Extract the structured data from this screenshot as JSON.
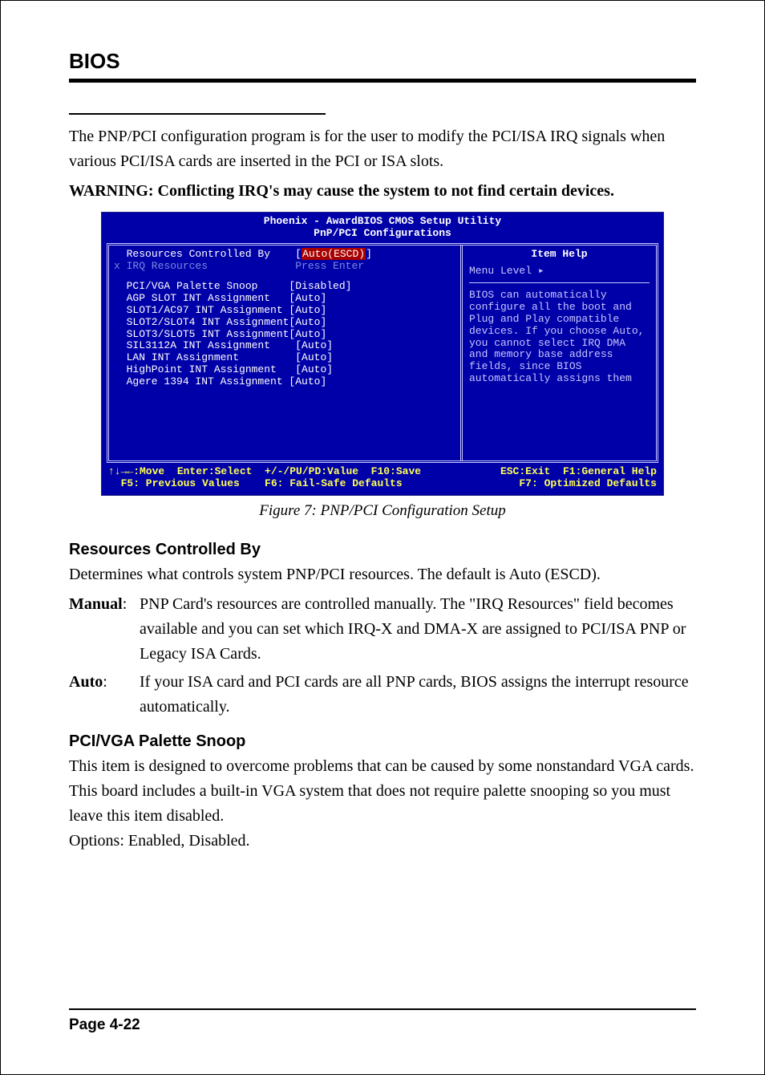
{
  "header": "BIOS",
  "intro_p1": "The PNP/PCI configuration program is for the user to modify the PCI/ISA IRQ signals when various PCI/ISA cards are inserted in the PCI or ISA slots.",
  "warning": "WARNING: Conflicting IRQ's may cause the system to not find certain devices.",
  "figure_caption": "Figure 7:  PNP/PCI Configuration Setup",
  "section1": {
    "title": "Resources Controlled By",
    "body": "Determines what controls system PNP/PCI resources. The default is Auto (ESCD).",
    "defs": [
      {
        "term": "Manual",
        "body": "PNP Card's resources are controlled manually. The \"IRQ Resources\" field becomes available and you can set which IRQ-X and DMA-X are assigned to PCI/ISA PNP or Legacy ISA Cards."
      },
      {
        "term": "Auto",
        "body": "If your ISA card and PCI cards are all PNP cards, BIOS assigns the interrupt resource automatically."
      }
    ]
  },
  "section2": {
    "title": "PCI/VGA Palette Snoop",
    "body": "This item is designed to overcome problems that can be caused by some nonstandard VGA cards. This board includes a built-in VGA system that does not require palette snooping so you must leave this item disabled.",
    "options": "Options: Enabled, Disabled."
  },
  "page_number": "Page 4-22",
  "bios": {
    "title1": "Phoenix - AwardBIOS CMOS Setup Utility",
    "title2": "PnP/PCI Configurations",
    "left": {
      "row0_label": "Resources Controlled By",
      "row0_val": "Auto(ESCD)",
      "row1_label": "x IRQ Resources",
      "row1_val": "Press Enter",
      "opts": [
        {
          "label": "PCI/VGA Palette Snoop",
          "pad": "     ",
          "val": "[Disabled]"
        },
        {
          "label": "AGP SLOT INT Assignment",
          "pad": "   ",
          "val": "[Auto]"
        },
        {
          "label": "SLOT1/AC97 INT Assignment",
          "pad": " ",
          "val": "[Auto]"
        },
        {
          "label": "SLOT2/SLOT4 INT Assignment",
          "pad": "",
          "val": "[Auto]"
        },
        {
          "label": "SLOT3/SLOT5 INT Assignment",
          "pad": "",
          "val": "[Auto]"
        },
        {
          "label": "SIL3112A INT Assignment",
          "pad": "    ",
          "val": "[Auto]"
        },
        {
          "label": "LAN INT Assignment",
          "pad": "         ",
          "val": "[Auto]"
        },
        {
          "label": "HighPoint INT Assignment",
          "pad": "   ",
          "val": "[Auto]"
        },
        {
          "label": "Agere 1394 INT Assignment",
          "pad": " ",
          "val": "[Auto]"
        }
      ]
    },
    "right": {
      "title": "Item Help",
      "menu_level": "Menu Level   ▸",
      "help_text": "BIOS can automatically configure all the boot and Plug and Play compatible devices. If you choose Auto, you cannot select IRQ DMA and memory base address fields, since BIOS automatically assigns them"
    },
    "footer": {
      "r1_left": "↑↓→←:Move  Enter:Select  +/-/PU/PD:Value  F10:Save",
      "r1_right": "ESC:Exit  F1:General Help",
      "r2_left": "  F5: Previous Values    F6: Fail-Safe Defaults",
      "r2_right": "F7: Optimized Defaults"
    },
    "colors": {
      "bg": "#0000a8",
      "text": "#ffffff",
      "dim": "#7a8adf",
      "help": "#c6c6ff",
      "highlight_bg": "#a80000",
      "yellow": "#ffff55"
    }
  }
}
